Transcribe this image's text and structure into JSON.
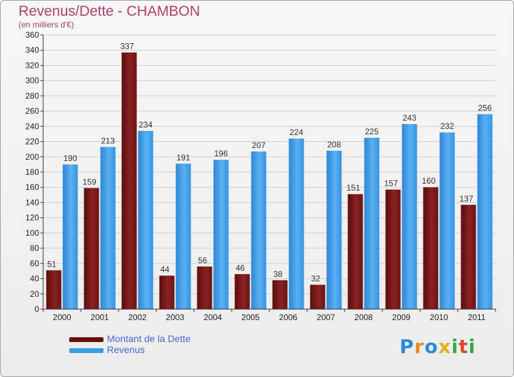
{
  "chart_data": {
    "type": "bar",
    "title": "Revenus/Dette - CHAMBON",
    "subtitle": "(en milliers d'€)",
    "categories": [
      "2000",
      "2001",
      "2002",
      "2003",
      "2004",
      "2005",
      "2006",
      "2007",
      "2008",
      "2009",
      "2010",
      "2011"
    ],
    "series": [
      {
        "name": "Montant de la Dette",
        "color": "#7a1818",
        "values": [
          51,
          159,
          337,
          44,
          56,
          46,
          38,
          32,
          151,
          157,
          160,
          137
        ]
      },
      {
        "name": "Revenus",
        "color": "#3b9ae6",
        "values": [
          190,
          213,
          234,
          191,
          196,
          207,
          224,
          208,
          225,
          243,
          232,
          256
        ]
      }
    ],
    "ylim": [
      0,
      360
    ],
    "ytick_step": 20,
    "grid": true,
    "legend_position": "bottom-left",
    "xlabel": "",
    "ylabel": ""
  },
  "logo": {
    "letters": [
      "P",
      "r",
      "o",
      "x",
      "i",
      "t",
      "i"
    ],
    "colors": [
      "#2e8ad8",
      "#e58a1f",
      "#2e8ad8",
      "#e0b020",
      "#3aa64a",
      "#d94b2b",
      "#3aa64a"
    ]
  }
}
